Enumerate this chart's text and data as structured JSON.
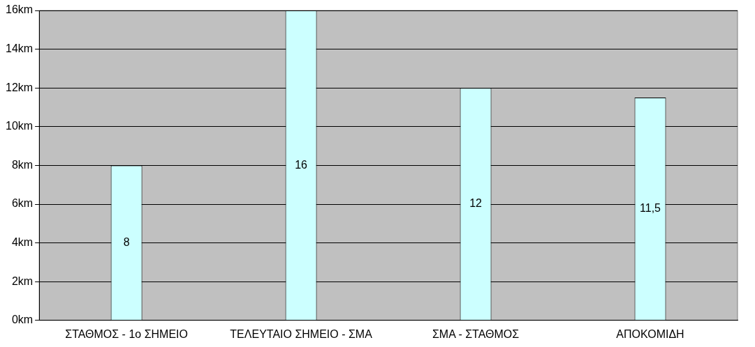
{
  "chart_data": {
    "type": "bar",
    "categories": [
      "ΣΤΑΘΜΟΣ - 1ο ΣΗΜΕΙΟ",
      "ΤΕΛΕΥΤΑΙΟ ΣΗΜΕΙΟ - ΣΜΑ",
      "ΣΜΑ - ΣΤΑΘΜΟΣ",
      "ΑΠΟΚΟΜΙΔΗ"
    ],
    "values": [
      8,
      16,
      12,
      11.5
    ],
    "value_labels": [
      "8",
      "16",
      "12",
      "11,5"
    ],
    "color": "#ccffff",
    "ylim": [
      0,
      16
    ],
    "yticks": [
      {
        "value": 0,
        "label": "0km"
      },
      {
        "value": 2,
        "label": "2km"
      },
      {
        "value": 4,
        "label": "4km"
      },
      {
        "value": 6,
        "label": "6km"
      },
      {
        "value": 8,
        "label": "8km"
      },
      {
        "value": 10,
        "label": "10km"
      },
      {
        "value": 12,
        "label": "12km"
      },
      {
        "value": 14,
        "label": "14km"
      },
      {
        "value": 16,
        "label": "16km"
      }
    ],
    "grid": "y"
  }
}
